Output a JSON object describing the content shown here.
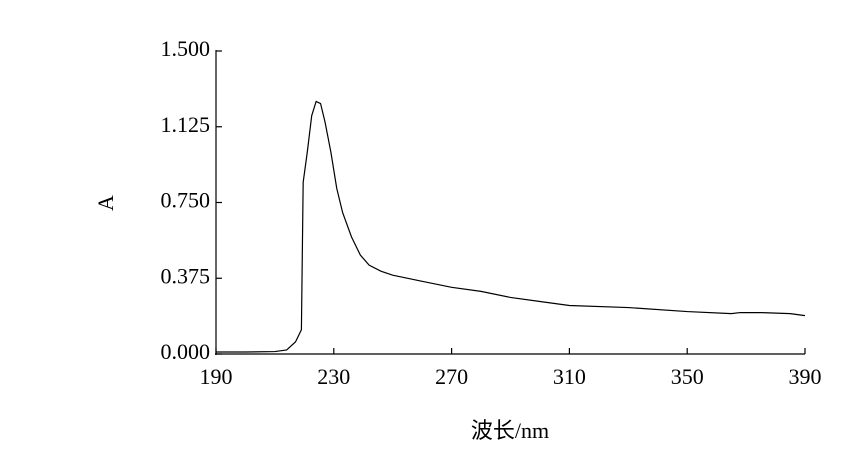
{
  "chart_data": {
    "type": "line",
    "xlabel": "波长/nm",
    "ylabel": "A",
    "x": [
      190,
      200,
      210,
      214,
      217,
      219,
      219.6,
      221,
      222.5,
      224,
      225.5,
      227,
      229,
      231,
      233,
      236,
      239,
      242,
      246,
      250,
      260,
      270,
      280,
      290,
      300,
      310,
      330,
      350,
      365,
      368,
      375,
      385,
      390
    ],
    "series": [
      {
        "color": "#000000",
        "values": [
          0.01,
          0.01,
          0.012,
          0.02,
          0.06,
          0.12,
          0.85,
          1.0,
          1.18,
          1.25,
          1.24,
          1.15,
          1.0,
          0.82,
          0.7,
          0.58,
          0.49,
          0.44,
          0.41,
          0.39,
          0.36,
          0.33,
          0.31,
          0.28,
          0.26,
          0.24,
          0.23,
          0.21,
          0.2,
          0.205,
          0.205,
          0.2,
          0.19
        ]
      }
    ],
    "xlim": [
      190,
      390
    ],
    "xticks": [
      190,
      230,
      270,
      310,
      350,
      390
    ],
    "ylim": [
      0,
      1.5
    ],
    "yticks": [
      {
        "value": 0,
        "label": "0.000"
      },
      0.375,
      {
        "value": 0.75,
        "label": "0.750"
      },
      1.125,
      {
        "value": 1.5,
        "label": "1.500"
      }
    ],
    "grid": false
  }
}
